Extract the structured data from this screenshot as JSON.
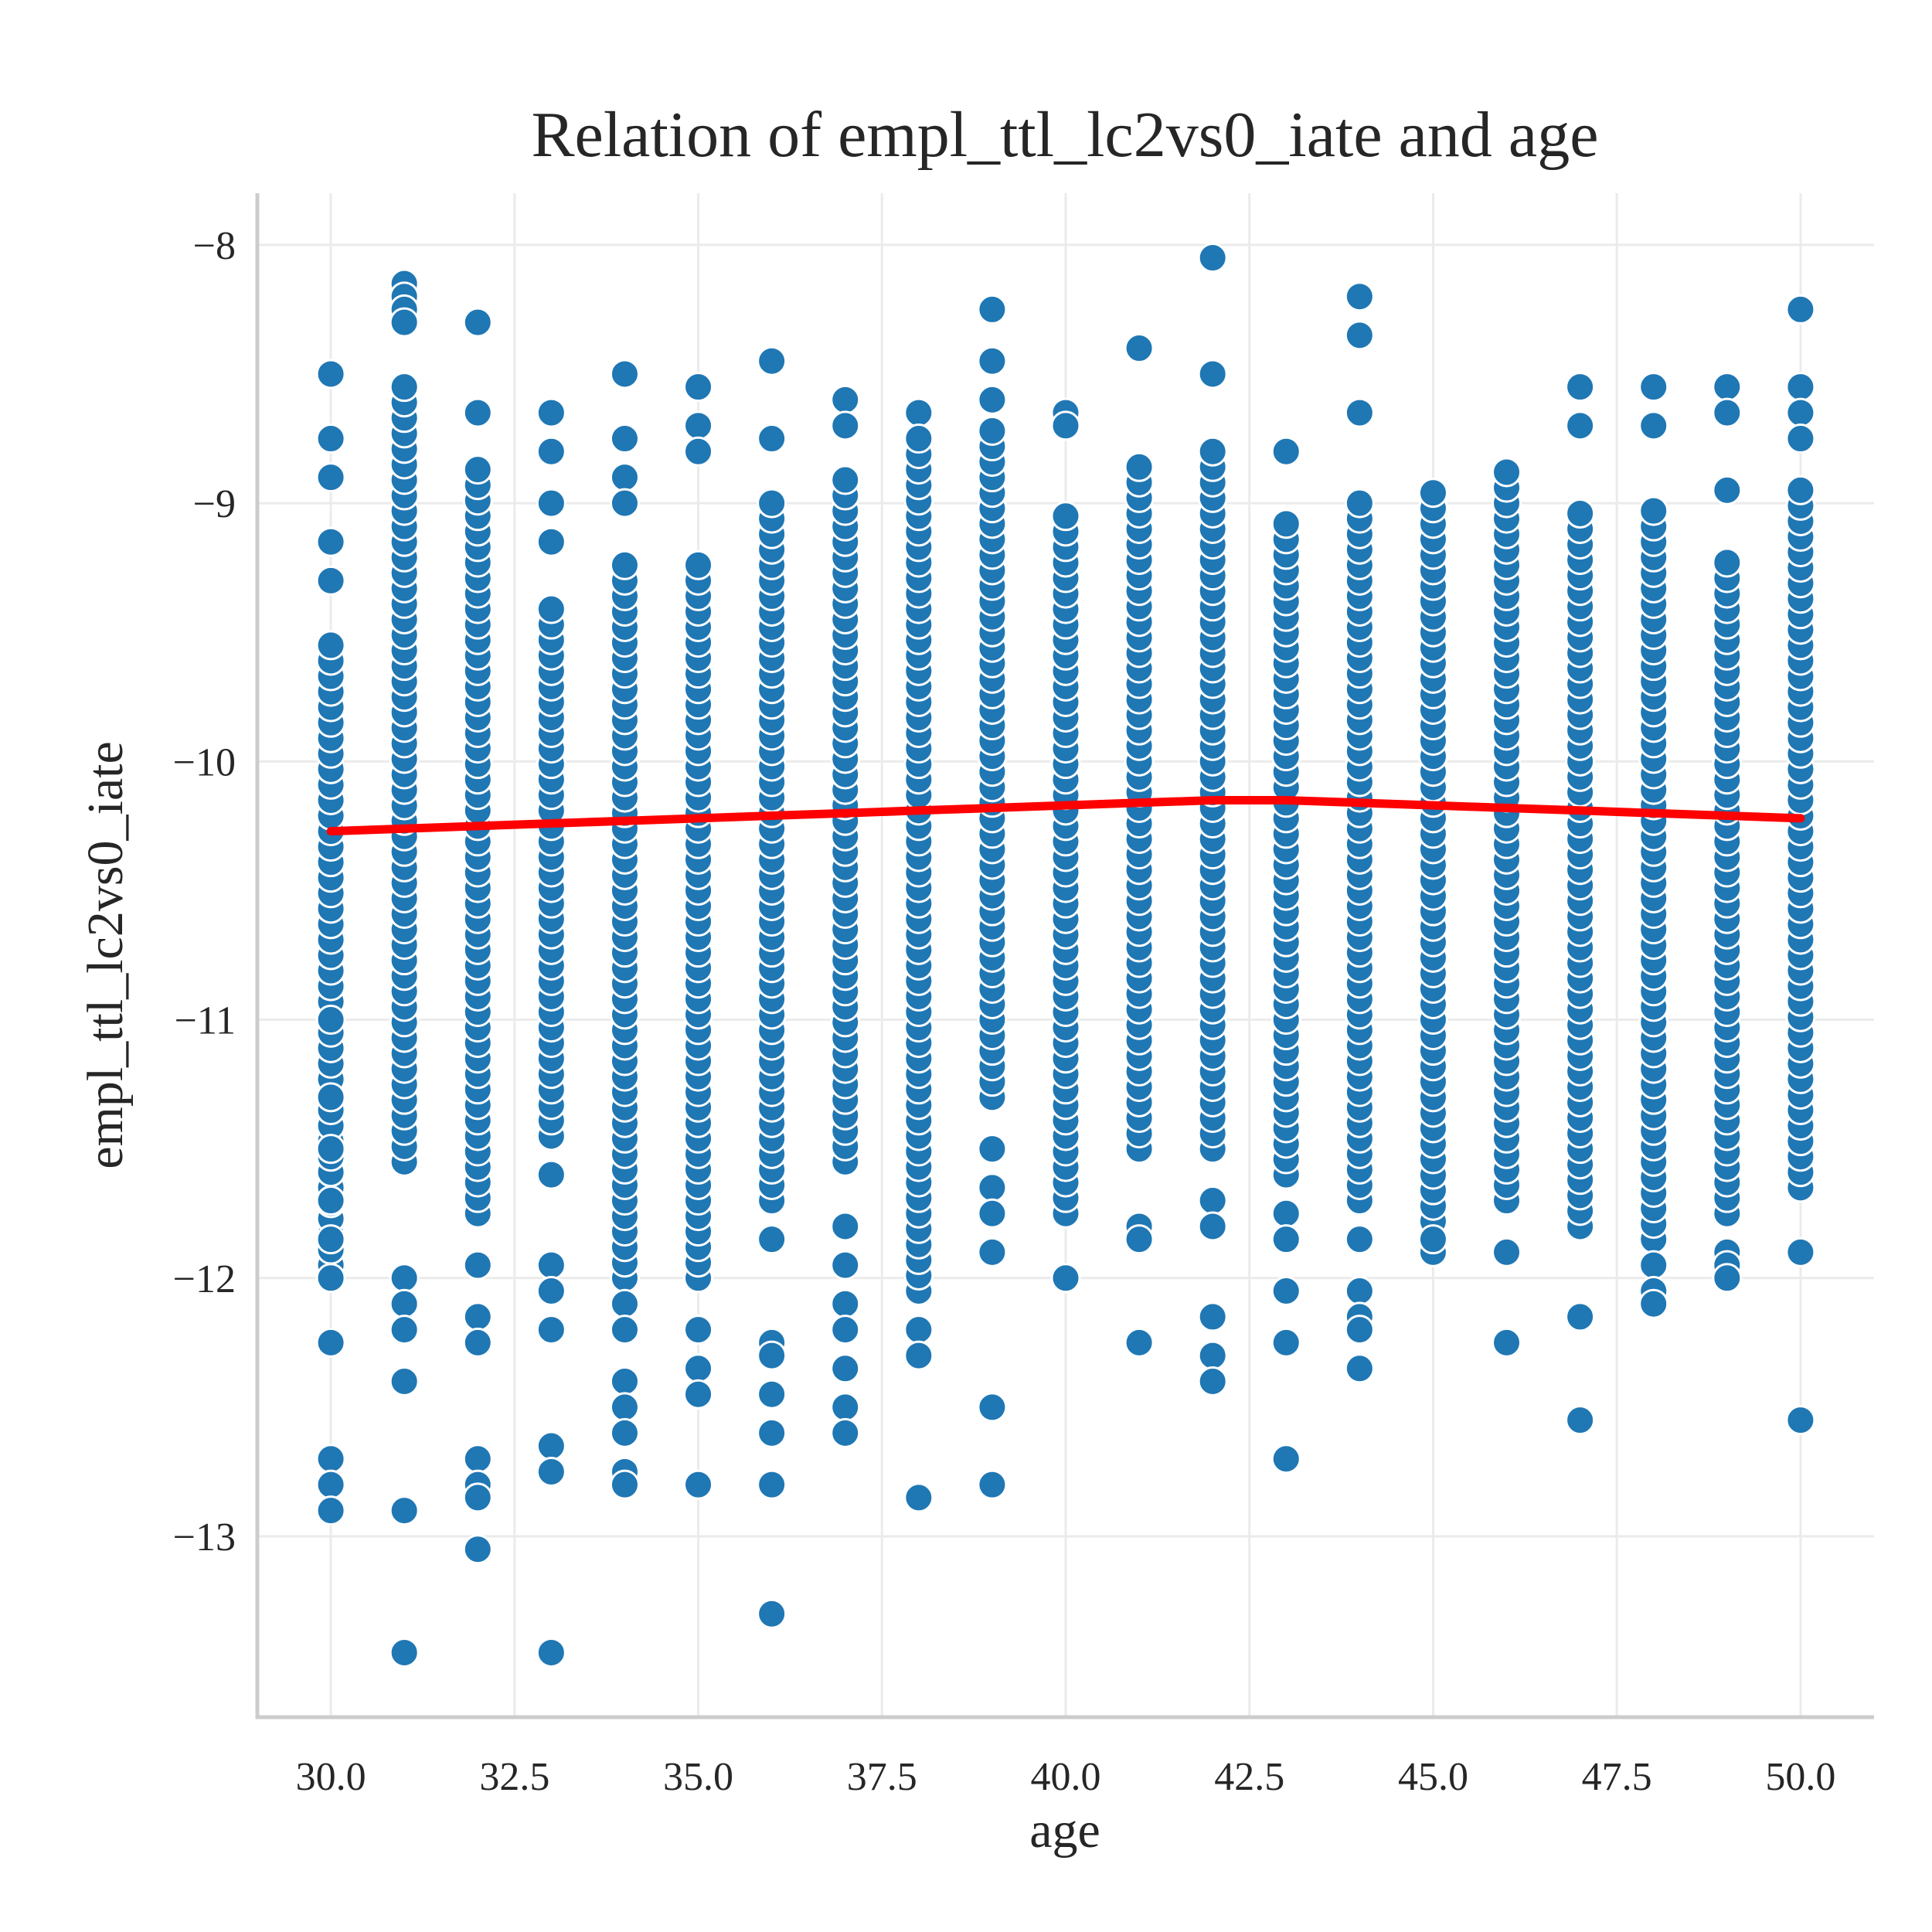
{
  "chart_data": {
    "type": "scatter",
    "title": "Relation of empl_ttl_lc2vs0_iate and age",
    "xlabel": "age",
    "ylabel": "empl_ttl_lc2vs0_iate",
    "xlim": [
      29.0,
      51.0
    ],
    "ylim": [
      -13.7,
      -7.8
    ],
    "x_ticks": [
      30.0,
      32.5,
      35.0,
      37.5,
      40.0,
      42.5,
      45.0,
      47.5,
      50.0
    ],
    "x_tick_labels": [
      "30.0",
      "32.5",
      "35.0",
      "37.5",
      "40.0",
      "42.5",
      "45.0",
      "47.5",
      "50.0"
    ],
    "y_ticks": [
      -13,
      -12,
      -11,
      -10,
      -9,
      -8
    ],
    "y_tick_labels": [
      "−13",
      "−12",
      "−11",
      "−10",
      "−9",
      "−8"
    ],
    "grid": true,
    "colors": {
      "points": "#1f77b4",
      "trend": "#ff0000"
    },
    "series": [
      {
        "kind": "scatter",
        "points_by_age": [
          {
            "x": 30,
            "range": [
              -11.95,
              -9.55
            ],
            "extra": [
              -8.5,
              -8.75,
              -8.9,
              -9.15,
              -9.3,
              -11.0,
              -11.3,
              -11.5,
              -11.7,
              -11.85,
              -12.0,
              -12.25,
              -12.7,
              -12.8,
              -12.9
            ]
          },
          {
            "x": 31,
            "range": [
              -11.55,
              -8.5
            ],
            "extra": [
              -8.15,
              -8.2,
              -8.25,
              -8.3,
              -12.0,
              -12.1,
              -12.2,
              -12.4,
              -12.9,
              -13.45
            ]
          },
          {
            "x": 32,
            "range": [
              -11.75,
              -8.85
            ],
            "extra": [
              -8.3,
              -8.65,
              -11.95,
              -12.15,
              -12.25,
              -12.7,
              -12.8,
              -12.85,
              -13.05
            ]
          },
          {
            "x": 33,
            "range": [
              -11.45,
              -9.4
            ],
            "extra": [
              -8.65,
              -8.8,
              -9.0,
              -9.15,
              -11.6,
              -11.95,
              -12.05,
              -12.2,
              -12.65,
              -12.75,
              -13.45
            ]
          },
          {
            "x": 34,
            "range": [
              -12.0,
              -9.2
            ],
            "extra": [
              -8.5,
              -8.75,
              -8.9,
              -9.0,
              -12.1,
              -12.2,
              -12.4,
              -12.5,
              -12.6,
              -12.75,
              -12.8
            ]
          },
          {
            "x": 35,
            "range": [
              -12.0,
              -9.2
            ],
            "extra": [
              -8.55,
              -8.7,
              -8.8,
              -12.2,
              -12.35,
              -12.45,
              -12.8
            ]
          },
          {
            "x": 36,
            "range": [
              -11.7,
              -8.95
            ],
            "extra": [
              -8.45,
              -8.75,
              -11.85,
              -12.25,
              -12.3,
              -12.45,
              -12.6,
              -12.8,
              -13.3
            ]
          },
          {
            "x": 37,
            "range": [
              -11.55,
              -8.9
            ],
            "extra": [
              -8.6,
              -8.7,
              -11.8,
              -11.95,
              -12.1,
              -12.2,
              -12.35,
              -12.5,
              -12.6
            ]
          },
          {
            "x": 38,
            "range": [
              -12.05,
              -8.8
            ],
            "extra": [
              -8.65,
              -8.75,
              -12.2,
              -12.3,
              -12.85
            ]
          },
          {
            "x": 39,
            "range": [
              -11.3,
              -8.7
            ],
            "extra": [
              -8.25,
              -8.45,
              -8.6,
              -11.5,
              -11.65,
              -11.75,
              -11.9,
              -12.5,
              -12.8
            ]
          },
          {
            "x": 40,
            "range": [
              -11.75,
              -9.0
            ],
            "extra": [
              -8.65,
              -8.7,
              -12.0
            ]
          },
          {
            "x": 41,
            "range": [
              -11.5,
              -8.85
            ],
            "extra": [
              -8.4,
              -11.8,
              -11.85,
              -12.25
            ]
          },
          {
            "x": 42,
            "range": [
              -11.5,
              -8.8
            ],
            "extra": [
              -8.05,
              -8.5,
              -11.7,
              -11.8,
              -12.15,
              -12.3,
              -12.4
            ]
          },
          {
            "x": 43,
            "range": [
              -11.6,
              -9.05
            ],
            "extra": [
              -8.8,
              -11.75,
              -11.85,
              -12.05,
              -12.25,
              -12.7
            ]
          },
          {
            "x": 44,
            "range": [
              -11.7,
              -8.95
            ],
            "extra": [
              -8.2,
              -8.35,
              -8.65,
              -11.85,
              -12.05,
              -12.15,
              -12.2,
              -12.35
            ]
          },
          {
            "x": 45,
            "range": [
              -11.9,
              -8.95
            ],
            "extra": [
              -11.85
            ]
          },
          {
            "x": 46,
            "range": [
              -11.7,
              -8.85
            ],
            "extra": [
              -11.9,
              -12.25
            ]
          },
          {
            "x": 47,
            "range": [
              -11.8,
              -9.0
            ],
            "extra": [
              -8.55,
              -8.7,
              -12.15,
              -12.55
            ]
          },
          {
            "x": 48,
            "range": [
              -11.85,
              -9.0
            ],
            "extra": [
              -8.55,
              -8.7,
              -11.95,
              -12.05,
              -12.1
            ]
          },
          {
            "x": 49,
            "range": [
              -11.75,
              -9.2
            ],
            "extra": [
              -8.55,
              -8.65,
              -8.95,
              -11.9,
              -11.95,
              -12.0
            ]
          },
          {
            "x": 50,
            "range": [
              -11.65,
              -8.95
            ],
            "extra": [
              -8.25,
              -8.55,
              -8.65,
              -8.75,
              -11.9,
              -12.55
            ]
          }
        ]
      },
      {
        "kind": "line",
        "x": [
          30,
          31,
          32,
          33,
          34,
          35,
          36,
          37,
          38,
          39,
          40,
          41,
          42,
          43,
          44,
          45,
          46,
          47,
          48,
          49,
          50
        ],
        "y": [
          -10.27,
          -10.26,
          -10.25,
          -10.24,
          -10.23,
          -10.22,
          -10.21,
          -10.2,
          -10.19,
          -10.18,
          -10.17,
          -10.16,
          -10.15,
          -10.15,
          -10.16,
          -10.17,
          -10.18,
          -10.19,
          -10.2,
          -10.21,
          -10.22
        ]
      }
    ]
  }
}
